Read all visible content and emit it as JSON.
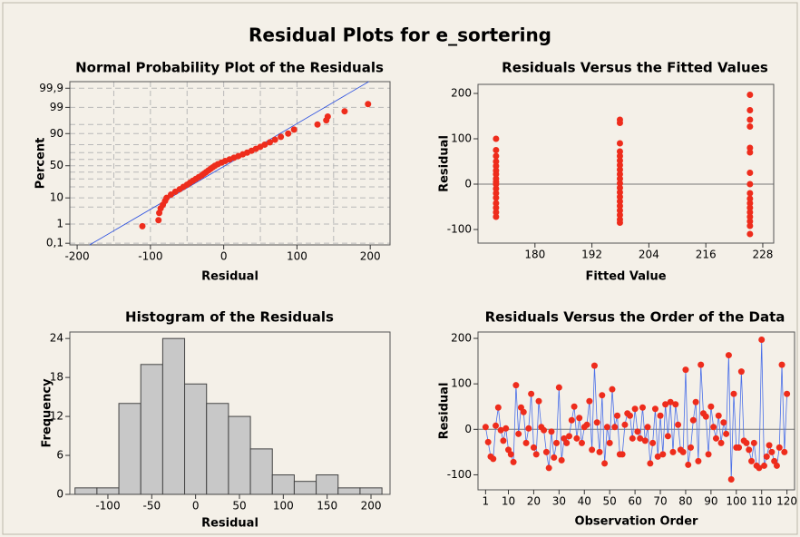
{
  "title": "Residual Plots for e_sortering",
  "chart_data": [
    {
      "type": "probability",
      "title": "Normal Probability Plot of the Residuals",
      "x_label": "Residual",
      "y_label": "Percent",
      "x": [
        -111,
        -89,
        -88,
        -86,
        -83,
        -80,
        -78,
        -72,
        -66,
        -60,
        -55,
        -50,
        -46,
        -42,
        -38,
        -34,
        -30,
        -27,
        -24,
        -21,
        -18,
        -15,
        -12,
        -8,
        -3,
        2,
        8,
        14,
        20,
        26,
        32,
        38,
        44,
        50,
        56,
        63,
        70,
        78,
        88,
        96,
        128,
        140,
        142,
        165,
        197
      ],
      "y": [
        0.8,
        1.5,
        3,
        4.5,
        6,
        8,
        10,
        12.5,
        15,
        17.5,
        20,
        22.5,
        25,
        27.5,
        30,
        32.5,
        35,
        37.5,
        40,
        42.5,
        45,
        47.5,
        50,
        52.5,
        55,
        57.5,
        60,
        62.5,
        65,
        67.5,
        70,
        72.5,
        75,
        77.5,
        80,
        82.5,
        85,
        87.5,
        90,
        92.5,
        95,
        96.5,
        97.5,
        98.5,
        99.3
      ],
      "color": "#ee2c1c",
      "fit_line": {
        "x": [
          -183,
          198
        ],
        "y": [
          0.08,
          99.96
        ],
        "color": "#2a4fe0"
      },
      "xlim": [
        -210,
        227
      ],
      "ylim": [
        0.08,
        99.96
      ],
      "xticks": [
        -200,
        -100,
        0,
        100,
        200
      ],
      "yticks": [
        {
          "value": 0.1,
          "label": "0,1"
        },
        1,
        10,
        50,
        90,
        99,
        {
          "value": 99.9,
          "label": "99,9"
        }
      ],
      "yscale": "normal",
      "grid": true,
      "xgrid": [
        -150,
        -100,
        -50,
        0,
        50,
        100,
        150
      ],
      "ygrid": [
        0.1,
        1,
        5,
        10,
        20,
        30,
        40,
        50,
        60,
        70,
        80,
        90,
        95,
        99,
        99.9
      ]
    },
    {
      "type": "scatter",
      "title": "Residuals Versus the Fitted Values",
      "x_label": "Fitted Value",
      "y_label": "Residual",
      "x": [
        171.8,
        171.8,
        171.8,
        171.8,
        171.8,
        171.8,
        171.8,
        171.8,
        171.8,
        171.8,
        171.8,
        171.8,
        171.8,
        171.8,
        171.8,
        171.8,
        171.8,
        197.9,
        197.9,
        197.9,
        197.9,
        197.9,
        197.9,
        197.9,
        197.9,
        197.9,
        197.9,
        197.9,
        197.9,
        197.9,
        197.9,
        197.9,
        197.9,
        197.9,
        197.9,
        197.9,
        197.9,
        225.3,
        225.3,
        225.3,
        225.3,
        225.3,
        225.3,
        225.3,
        225.3,
        225.3,
        225.3,
        225.3,
        225.3,
        225.3,
        225.3,
        225.3,
        225.3,
        225.3
      ],
      "y": [
        100,
        75,
        62,
        50,
        40,
        30,
        22,
        12,
        5,
        0,
        -10,
        -20,
        -30,
        -42,
        -52,
        -62,
        -72,
        142,
        135,
        90,
        72,
        62,
        52,
        42,
        32,
        22,
        12,
        2,
        -8,
        -18,
        -28,
        -38,
        -48,
        -58,
        -68,
        -78,
        -85,
        197,
        163,
        142,
        127,
        80,
        70,
        25,
        0,
        -20,
        -32,
        -42,
        -52,
        -62,
        -72,
        -82,
        -92,
        -110
      ],
      "color": "#ee2c1c",
      "xlim": [
        168,
        230.3
      ],
      "ylim": [
        -130,
        220
      ],
      "xticks": [
        180,
        192,
        204,
        216,
        228
      ],
      "yticks": [
        -100,
        0,
        100,
        200
      ],
      "reference_line": 0
    },
    {
      "type": "histogram",
      "title": "Histogram of the Residuals",
      "x_label": "Residual",
      "y_label": "Frequency",
      "bins": [
        -137.5,
        -112.5,
        -87.5,
        -62.5,
        -37.5,
        -12.5,
        12.5,
        37.5,
        62.5,
        87.5,
        112.5,
        137.5,
        162.5,
        187.5,
        212.5
      ],
      "counts": [
        1,
        1,
        14,
        20,
        24,
        17,
        14,
        12,
        7,
        3,
        2,
        3,
        1,
        1
      ],
      "color": "#c8c8c8",
      "xlim": [
        -143.4,
        221.7
      ],
      "ylim": [
        0,
        25
      ],
      "xticks": [
        -100,
        -50,
        0,
        50,
        100,
        150,
        200
      ],
      "yticks": [
        0,
        6,
        12,
        18,
        24
      ]
    },
    {
      "type": "line",
      "title": "Residuals Versus the Order of the Data",
      "x_label": "Observation Order",
      "y_label": "Residual",
      "x": [
        1,
        2,
        3,
        4,
        5,
        6,
        7,
        8,
        9,
        10,
        11,
        12,
        13,
        14,
        15,
        16,
        17,
        18,
        19,
        20,
        21,
        22,
        23,
        24,
        25,
        26,
        27,
        28,
        29,
        30,
        31,
        32,
        33,
        34,
        35,
        36,
        37,
        38,
        39,
        40,
        41,
        42,
        43,
        44,
        45,
        46,
        47,
        48,
        49,
        50,
        51,
        52,
        53,
        54,
        55,
        56,
        57,
        58,
        59,
        60,
        61,
        62,
        63,
        64,
        65,
        66,
        67,
        68,
        69,
        70,
        71,
        72,
        73,
        74,
        75,
        76,
        77,
        78,
        79,
        80,
        81,
        82,
        83,
        84,
        85,
        86,
        87,
        88,
        89,
        90,
        91,
        92,
        93,
        94,
        95,
        96,
        97,
        98,
        99,
        100,
        101,
        102,
        103,
        104,
        105,
        106,
        107,
        108,
        109,
        110,
        111,
        112,
        113,
        114,
        115,
        116,
        117,
        118,
        119,
        120
      ],
      "y": [
        5,
        -28,
        -60,
        -65,
        8,
        48,
        -2,
        -25,
        2,
        -45,
        -55,
        -72,
        97,
        -10,
        48,
        38,
        -30,
        2,
        78,
        -40,
        -55,
        62,
        5,
        -2,
        -50,
        -85,
        -5,
        -62,
        -30,
        92,
        -68,
        -20,
        -30,
        -15,
        20,
        50,
        -20,
        25,
        -30,
        5,
        10,
        62,
        -45,
        140,
        15,
        -50,
        75,
        -75,
        5,
        -30,
        88,
        5,
        30,
        -55,
        -55,
        10,
        35,
        30,
        -20,
        45,
        -5,
        -20,
        48,
        -25,
        5,
        -75,
        -30,
        45,
        -60,
        30,
        -55,
        55,
        -15,
        60,
        -50,
        55,
        10,
        -45,
        -50,
        131,
        -78,
        -40,
        20,
        60,
        -70,
        142,
        35,
        28,
        -55,
        50,
        5,
        -20,
        30,
        -30,
        15,
        -10,
        163,
        -110,
        78,
        -40,
        -40,
        127,
        -25,
        -30,
        -45,
        -70,
        -30,
        -80,
        -85,
        197,
        -80,
        -60,
        -35,
        -50,
        -70,
        -80,
        -40,
        142,
        -50,
        78
      ],
      "color": "#ee2c1c",
      "line_color": "#4a6fe8",
      "xlim": [
        -2,
        123
      ],
      "ylim": [
        -133,
        214
      ],
      "xticks": [
        1,
        10,
        20,
        30,
        40,
        50,
        60,
        70,
        80,
        90,
        100,
        110,
        120
      ],
      "yticks": [
        -100,
        0,
        100,
        200
      ],
      "reference_line": 0
    }
  ]
}
